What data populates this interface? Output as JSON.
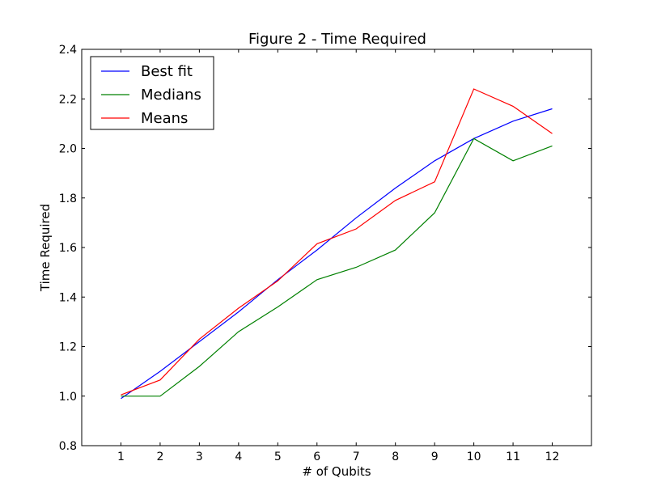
{
  "chart_data": {
    "type": "line",
    "title": "Figure 2 - Time Required",
    "xlabel": "# of Qubits",
    "ylabel": "Time Required",
    "xlim": [
      0,
      13
    ],
    "ylim": [
      0.8,
      2.4
    ],
    "grid": false,
    "legend_position": "top-left",
    "x": [
      1,
      2,
      3,
      4,
      5,
      6,
      7,
      8,
      9,
      10,
      11,
      12
    ],
    "x_ticks": [
      "1",
      "2",
      "3",
      "4",
      "5",
      "6",
      "7",
      "8",
      "9",
      "10",
      "11",
      "12"
    ],
    "y_ticks": [
      "0.8",
      "1.0",
      "1.2",
      "1.4",
      "1.6",
      "1.8",
      "2.0",
      "2.2",
      "2.4"
    ],
    "y_tick_values": [
      0.8,
      1.0,
      1.2,
      1.4,
      1.6,
      1.8,
      2.0,
      2.2,
      2.4
    ],
    "series": [
      {
        "name": "Best fit",
        "color": "#0000ff",
        "values": [
          0.99,
          1.1,
          1.22,
          1.34,
          1.47,
          1.59,
          1.72,
          1.84,
          1.95,
          2.04,
          2.11,
          2.16
        ]
      },
      {
        "name": "Medians",
        "color": "#008000",
        "values": [
          1.0,
          1.0,
          1.12,
          1.26,
          1.36,
          1.47,
          1.52,
          1.59,
          1.74,
          2.04,
          1.95,
          2.01
        ]
      },
      {
        "name": "Means",
        "color": "#ff0000",
        "values": [
          1.005,
          1.065,
          1.23,
          1.355,
          1.465,
          1.615,
          1.675,
          1.79,
          1.865,
          2.24,
          2.17,
          2.06
        ]
      }
    ]
  }
}
